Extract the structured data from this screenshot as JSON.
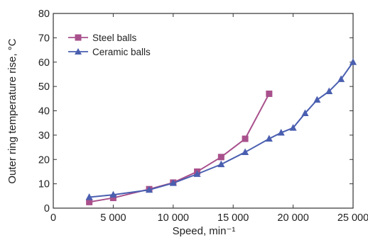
{
  "chart_data": {
    "type": "line",
    "xlabel": "Speed, min⁻¹",
    "ylabel": "Outer ring temperature rise, °C",
    "xlim": [
      0,
      25000
    ],
    "ylim": [
      0,
      80
    ],
    "x_ticks": [
      0,
      5000,
      10000,
      15000,
      20000,
      25000
    ],
    "x_tick_labels": [
      "0",
      "5 000",
      "10 000",
      "15 000",
      "20 000",
      "25 000"
    ],
    "y_ticks": [
      0,
      10,
      20,
      30,
      40,
      50,
      60,
      70,
      80
    ],
    "y_tick_labels": [
      "0",
      "10",
      "20",
      "30",
      "40",
      "50",
      "60",
      "70",
      "80"
    ],
    "grid": false,
    "legend_position": "top-left",
    "series": [
      {
        "name": "Steel balls",
        "color": "#a8508c",
        "marker": "square",
        "x": [
          3000,
          5000,
          8000,
          10000,
          12000,
          14000,
          16000,
          18000
        ],
        "y": [
          2.5,
          4.2,
          7.8,
          10.5,
          15.0,
          21.0,
          28.5,
          47.0
        ]
      },
      {
        "name": "Ceramic balls",
        "color": "#4a5fb0",
        "marker": "triangle",
        "x": [
          3000,
          5000,
          8000,
          10000,
          12000,
          14000,
          16000,
          18000,
          19000,
          20000,
          21000,
          22000,
          23000,
          24000,
          25000
        ],
        "y": [
          4.5,
          5.5,
          7.5,
          10.3,
          14.0,
          18.0,
          23.0,
          28.5,
          31.0,
          33.0,
          39.0,
          44.5,
          48.0,
          53.0,
          60.0
        ]
      }
    ]
  }
}
